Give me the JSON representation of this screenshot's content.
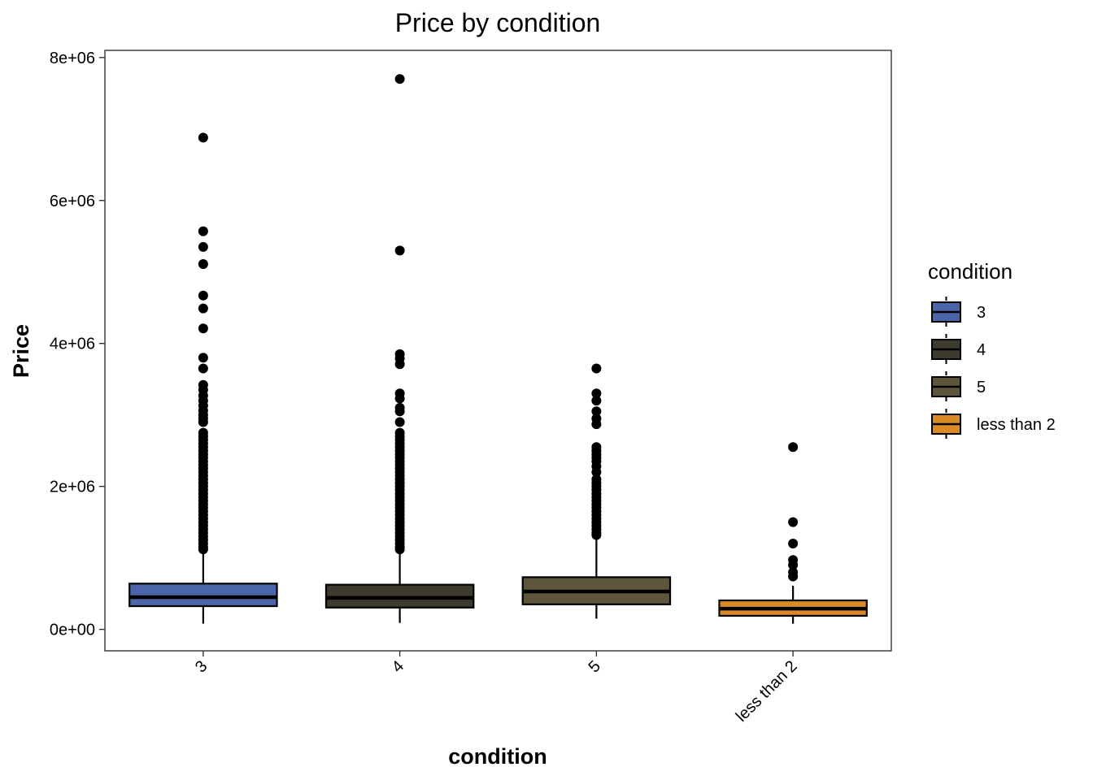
{
  "chart_data": {
    "type": "boxplot",
    "title": "Price by condition",
    "xlabel": "condition",
    "ylabel": "Price",
    "ylim": [
      -300000,
      8100000
    ],
    "y_ticks": [
      {
        "value": 0,
        "label": "0e+00"
      },
      {
        "value": 2000000,
        "label": "2e+06"
      },
      {
        "value": 4000000,
        "label": "4e+06"
      },
      {
        "value": 6000000,
        "label": "6e+06"
      },
      {
        "value": 8000000,
        "label": "8e+06"
      }
    ],
    "categories": [
      "3",
      "4",
      "5",
      "less than 2"
    ],
    "grid": false,
    "legend": {
      "title": "condition",
      "position": "right"
    },
    "series": [
      {
        "name": "3",
        "color": "#4a66a8",
        "whisker_low": 80000,
        "q1": 325000,
        "median": 450000,
        "q3": 640000,
        "whisker_high": 1100000,
        "outliers": [
          6880000,
          5570000,
          5350000,
          5110000,
          4670000,
          4490000,
          4210000,
          3800000,
          3650000,
          3420000,
          3350000,
          3270000,
          3200000,
          3130000,
          3060000,
          3000000,
          2950000,
          2900000,
          2750000,
          2700000,
          2650000,
          2600000,
          2550000,
          2500000,
          2450000,
          2400000,
          2350000,
          2300000,
          2250000,
          2200000,
          2150000,
          2100000,
          2050000,
          2000000,
          1950000,
          1900000,
          1850000,
          1800000,
          1750000,
          1700000,
          1650000,
          1600000,
          1550000,
          1500000,
          1450000,
          1400000,
          1350000,
          1300000,
          1250000,
          1200000,
          1150000,
          1120000
        ]
      },
      {
        "name": "4",
        "color": "#3d3a2e",
        "whisker_low": 90000,
        "q1": 305000,
        "median": 440000,
        "q3": 625000,
        "whisker_high": 1100000,
        "outliers": [
          7700000,
          5300000,
          3850000,
          3790000,
          3710000,
          3300000,
          3230000,
          3100000,
          3050000,
          2900000,
          2750000,
          2700000,
          2650000,
          2600000,
          2550000,
          2500000,
          2450000,
          2400000,
          2350000,
          2300000,
          2250000,
          2200000,
          2150000,
          2100000,
          2050000,
          2000000,
          1950000,
          1900000,
          1850000,
          1800000,
          1750000,
          1700000,
          1650000,
          1600000,
          1550000,
          1500000,
          1450000,
          1400000,
          1350000,
          1300000,
          1250000,
          1200000,
          1150000,
          1120000
        ]
      },
      {
        "name": "5",
        "color": "#5e563c",
        "whisker_low": 150000,
        "q1": 350000,
        "median": 530000,
        "q3": 730000,
        "whisker_high": 1300000,
        "outliers": [
          3650000,
          3300000,
          3200000,
          3050000,
          2950000,
          2870000,
          2550000,
          2500000,
          2450000,
          2400000,
          2350000,
          2280000,
          2200000,
          2100000,
          2050000,
          2000000,
          1950000,
          1900000,
          1850000,
          1800000,
          1750000,
          1700000,
          1650000,
          1600000,
          1550000,
          1500000,
          1450000,
          1400000,
          1350000,
          1320000
        ]
      },
      {
        "name": "less than 2",
        "color": "#d98a24",
        "whisker_low": 80000,
        "q1": 190000,
        "median": 290000,
        "q3": 405000,
        "whisker_high": 610000,
        "outliers": [
          2550000,
          1500000,
          1200000,
          970000,
          900000,
          800000,
          740000
        ]
      }
    ]
  }
}
